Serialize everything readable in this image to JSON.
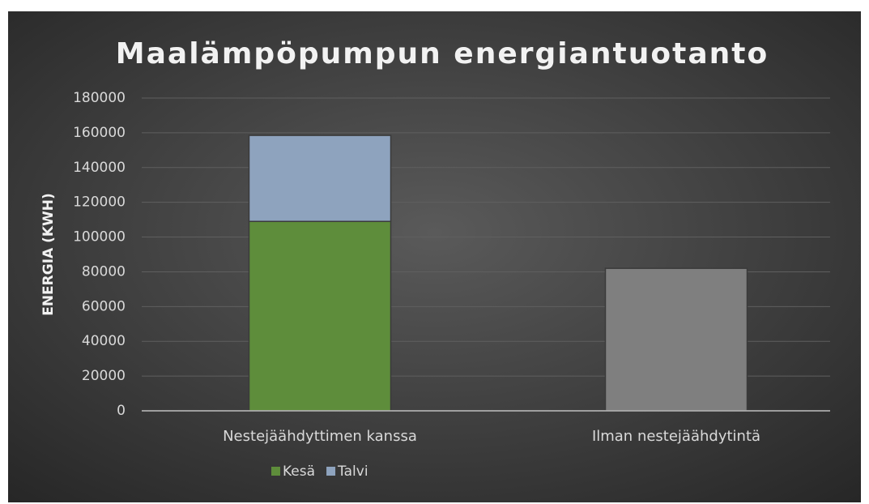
{
  "chart_data": {
    "type": "stacked_bar",
    "title": "Maalämpöpumpun energiantuotanto",
    "y_label": "ENERGIA (KWH)",
    "categories": [
      "Nestejäähdyttimen kanssa",
      "Ilman nestejäähdytintä"
    ],
    "series": [
      {
        "name": "Kesä",
        "color": "#5e8d3b",
        "values": [
          109000,
          null
        ]
      },
      {
        "name": "Talvi",
        "color": "#8ea3be",
        "values": [
          49500,
          null
        ]
      },
      {
        "color": "#7f7f7f",
        "values": [
          null,
          82000
        ]
      }
    ],
    "ylim": [
      0,
      180000
    ],
    "yticks": [
      0,
      20000,
      40000,
      60000,
      80000,
      100000,
      120000,
      140000,
      160000,
      180000
    ],
    "grid": true,
    "legend": "bottom"
  }
}
